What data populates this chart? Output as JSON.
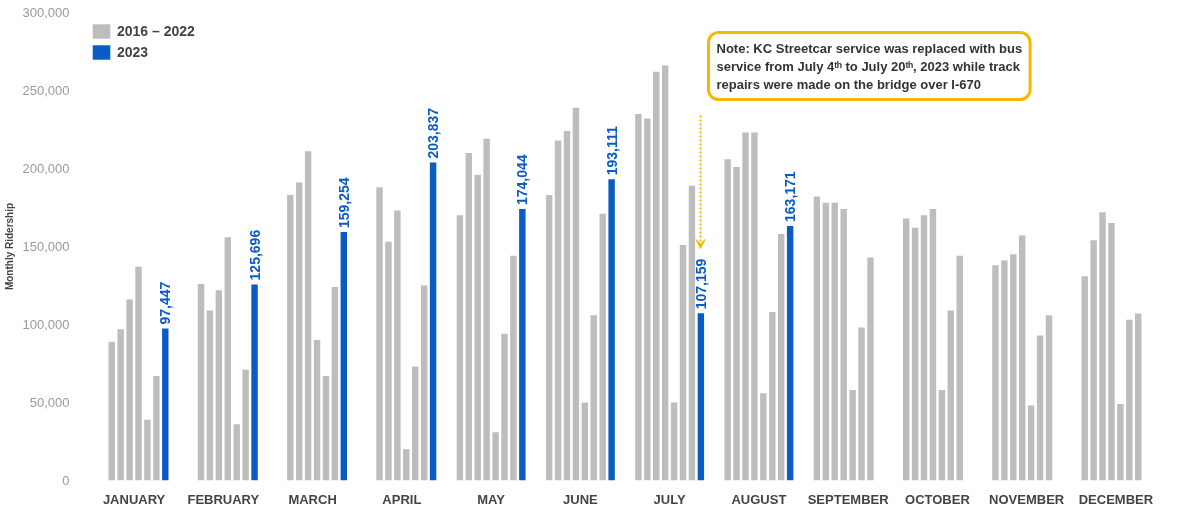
{
  "chart_data": {
    "type": "bar",
    "ylabel": "Monthly Ridership",
    "categories": [
      "JANUARY",
      "FEBRUARY",
      "MARCH",
      "APRIL",
      "MAY",
      "JUNE",
      "JULY",
      "AUGUST",
      "SEPTEMBER",
      "OCTOBER",
      "NOVEMBER",
      "DECEMBER"
    ],
    "series": [
      {
        "name": "2016 – 2022",
        "color": "#bdbdbd",
        "values": [
          null,
          null,
          null,
          null,
          170000,
          183000,
          235000,
          206000,
          182000,
          168000,
          138000,
          131000
        ]
      },
      {
        "color": "#bdbdbd",
        "values": [
          89000,
          126000,
          183000,
          188000,
          210000,
          218000,
          232000,
          201000,
          178000,
          162000,
          141000,
          154000
        ]
      },
      {
        "color": "#bdbdbd",
        "values": [
          97000,
          109000,
          191000,
          153000,
          196000,
          224000,
          262000,
          223000,
          178000,
          170000,
          145000,
          172000
        ]
      },
      {
        "color": "#bdbdbd",
        "values": [
          116000,
          122000,
          211000,
          173000,
          219000,
          239000,
          266000,
          223000,
          174000,
          174000,
          157000,
          165000
        ]
      },
      {
        "color": "#bdbdbd",
        "values": [
          137000,
          156000,
          90000,
          20000,
          31000,
          50000,
          50000,
          56000,
          58000,
          58000,
          48000,
          49000
        ]
      },
      {
        "color": "#bdbdbd",
        "values": [
          39000,
          36000,
          67000,
          73000,
          94000,
          106000,
          151000,
          108000,
          98000,
          109000,
          93000,
          103000
        ]
      },
      {
        "color": "#bdbdbd",
        "values": [
          67000,
          71000,
          124000,
          125000,
          144000,
          171000,
          189000,
          158000,
          143000,
          144000,
          106000,
          107000
        ]
      },
      {
        "name": "2023",
        "color": "#0a5bc4",
        "values": [
          97447,
          125696,
          159254,
          203837,
          174044,
          193111,
          107159,
          163171,
          null,
          null,
          null,
          null
        ],
        "value_labels": [
          "97,447",
          "125,696",
          "159,254",
          "203,837",
          "174,044",
          "193,111",
          "107,159",
          "163,171",
          null,
          null,
          null,
          null
        ]
      }
    ],
    "ylim": [
      0,
      300000
    ],
    "yticks": [
      {
        "value": 0,
        "label": "0"
      },
      {
        "value": 50000,
        "label": "50,000"
      },
      {
        "value": 100000,
        "label": "100,000"
      },
      {
        "value": 150000,
        "label": "150,000"
      },
      {
        "value": 200000,
        "label": "200,000"
      },
      {
        "value": 250000,
        "label": "250,000"
      },
      {
        "value": 300000,
        "label": "300,000"
      }
    ],
    "legend": "top left",
    "grid": false,
    "annotations": [
      "Note: KC Streetcar service was replaced with bus service from July 4ᵗʰ to July 20ᵗʰ, 2023 while track repairs were made on the bridge over I-670"
    ]
  }
}
